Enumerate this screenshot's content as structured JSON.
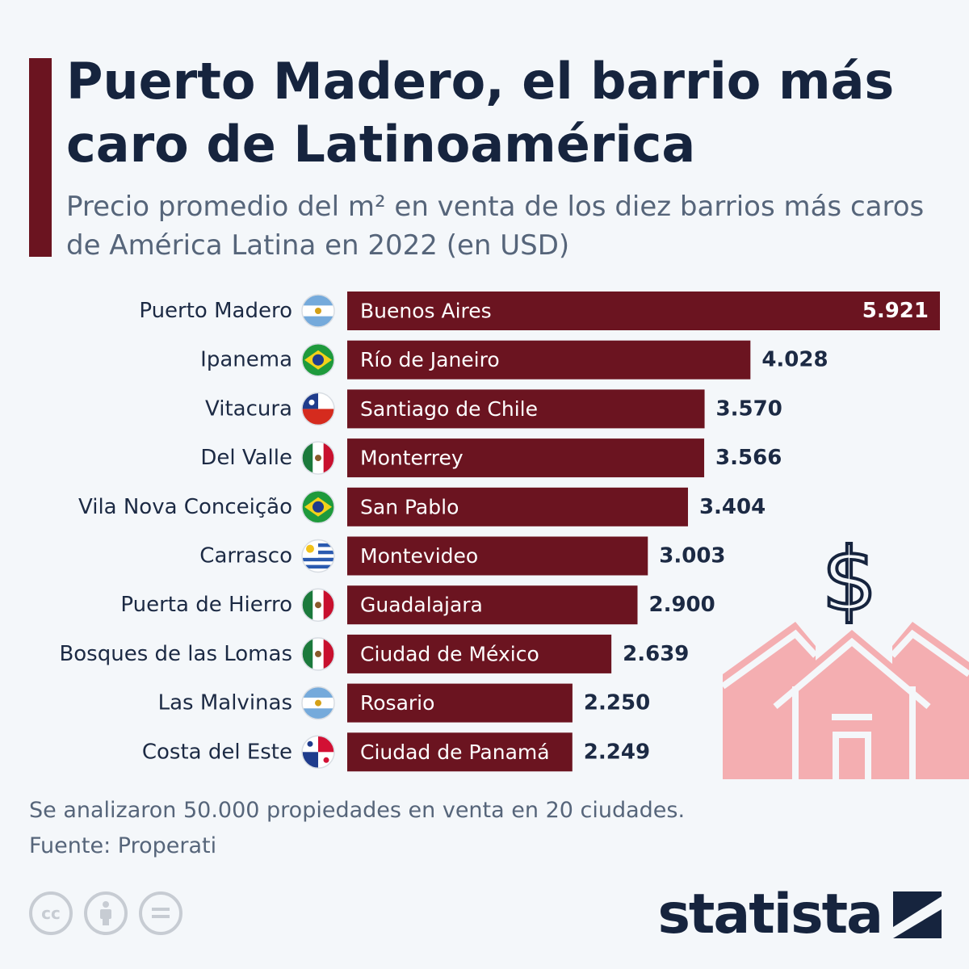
{
  "header": {
    "title": "Puerto Madero, el barrio más caro de Latinoamérica",
    "subtitle": "Precio promedio del m² en venta de los diez barrios más caros de América Latina en 2022 (en USD)"
  },
  "chart_data": {
    "type": "bar",
    "orientation": "horizontal",
    "categories": [
      "Puerto Madero",
      "Ipanema",
      "Vitacura",
      "Del Valle",
      "Vila Nova Conceição",
      "Carrasco",
      "Puerta de Hierro",
      "Bosques de las Lomas",
      "Las Malvinas",
      "Costa del Este"
    ],
    "cities": [
      "Buenos Aires",
      "Río de Janeiro",
      "Santiago de Chile",
      "Monterrey",
      "San Pablo",
      "Montevideo",
      "Guadalajara",
      "Ciudad de México",
      "Rosario",
      "Ciudad de Panamá"
    ],
    "flags": [
      "argentina-flag",
      "brazil-flag",
      "chile-flag",
      "mexico-flag",
      "brazil-flag",
      "uruguay-flag",
      "mexico-flag",
      "mexico-flag",
      "argentina-flag",
      "panama-flag"
    ],
    "values": [
      5921,
      4028,
      3570,
      3566,
      3404,
      3003,
      2900,
      2639,
      2250,
      2249
    ],
    "value_labels": [
      "5.921",
      "4.028",
      "3.570",
      "3.566",
      "3.404",
      "3.003",
      "2.900",
      "2.639",
      "2.250",
      "2.249"
    ],
    "xlim": [
      0,
      5921
    ],
    "grid": false,
    "legend": "none",
    "colors": {
      "bar": "#6b1420",
      "bar_text": "#ffffff",
      "value_text": "#1c2a44",
      "category_text": "#1c2a44"
    }
  },
  "decoration": {
    "house_color": "#f4aeb1",
    "dollar_color": "#16243e",
    "icon": "house-dollar-icon"
  },
  "footer": {
    "note": "Se analizaron 50.000 propiedades en venta en 20 ciudades.",
    "source": "Fuente: Properati",
    "cc_label": "cc",
    "logo": "statista"
  }
}
